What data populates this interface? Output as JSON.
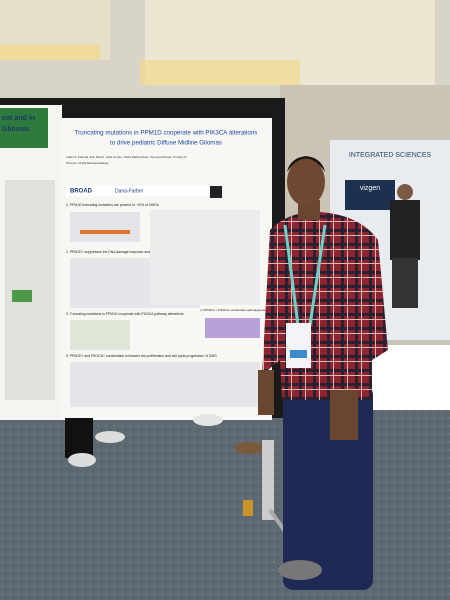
{
  "poster": {
    "title_lines": [
      "Truncating mutations in PPM1D cooperate with PIK3CA alterations",
      "to drive pediatric Diffuse Midline Gliomas"
    ],
    "author_lines": [
      "Adam F. Kobeda, Eric Martin, Iolita Kondo, Olivia Wattenshine, Veronica Rendo, Timothy N.",
      "Phoenix, Pratiti Bandopadhayay"
    ],
    "logos": [
      "BROAD",
      "Dana-Farber"
    ],
    "sections": [
      "1. PPM1D truncating mutations are present in ~10% of DMGs",
      "2. PPM1D+ suppresses the DNA damage response and apoptosis to promote tumorigenesis",
      "3. Truncating mutations in PPM1D cooperate with PIK3CA pathway alterations",
      "4. PPM1D+ / PIK3CA+ accelerates gliomagenesis in vivo",
      "5. PPM1D+ and PIK3CA+ combination enhances the proliferation and cell cycle progression of DMG"
    ]
  },
  "left_poster": {
    "title_lines": [
      "ent and in",
      "Gliomas"
    ]
  },
  "booth": {
    "sign": "INTEGRATED SCIENCES",
    "logo": "vizgen"
  }
}
